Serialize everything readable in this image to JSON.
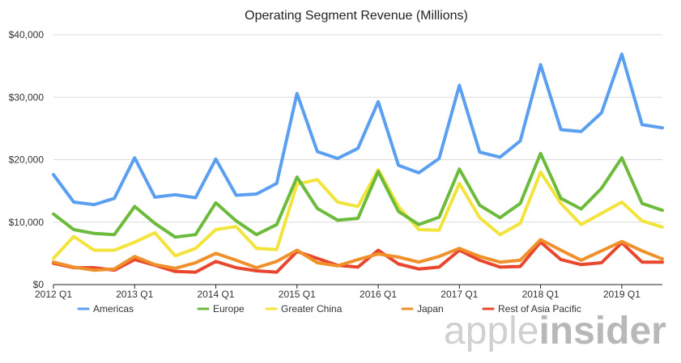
{
  "chart_data": {
    "type": "line",
    "title": "Operating Segment Revenue (Millions)",
    "xlabel": "",
    "ylabel": "",
    "ylim": [
      0,
      40000
    ],
    "yticks": [
      {
        "value": 0,
        "label": "$0"
      },
      {
        "value": 10000,
        "label": "$10,000"
      },
      {
        "value": 20000,
        "label": "$20,000"
      },
      {
        "value": 30000,
        "label": "$30,000"
      },
      {
        "value": 40000,
        "label": "$40,000"
      }
    ],
    "xticks": [
      {
        "index": 0,
        "label": "2012 Q1"
      },
      {
        "index": 4,
        "label": "2013 Q1"
      },
      {
        "index": 8,
        "label": "2014 Q1"
      },
      {
        "index": 12,
        "label": "2015 Q1"
      },
      {
        "index": 16,
        "label": "2016 Q1"
      },
      {
        "index": 20,
        "label": "2017 Q1"
      },
      {
        "index": 24,
        "label": "2018 Q1"
      },
      {
        "index": 28,
        "label": "2019 Q1"
      }
    ],
    "grid": true,
    "legend_position": "bottom",
    "series": [
      {
        "name": "Americas",
        "color": "#5a9ff0",
        "values": [
          17600,
          13200,
          12800,
          13800,
          20300,
          14000,
          14400,
          13900,
          20100,
          14300,
          14500,
          16200,
          30600,
          21300,
          20200,
          21800,
          29300,
          19100,
          17900,
          20200,
          31900,
          21200,
          20400,
          23000,
          35200,
          24800,
          24500,
          27500,
          36900,
          25600,
          25100
        ]
      },
      {
        "name": "Europe",
        "color": "#6cbb3c",
        "values": [
          11300,
          8800,
          8200,
          8000,
          12500,
          9800,
          7600,
          8000,
          13100,
          10200,
          8000,
          9600,
          17200,
          12200,
          10300,
          10600,
          18100,
          11700,
          9600,
          10800,
          18500,
          12700,
          10700,
          13000,
          21000,
          13800,
          12100,
          15400,
          20300,
          13000,
          11900
        ]
      },
      {
        "name": "Greater China",
        "color": "#f3e43c",
        "values": [
          4200,
          7700,
          5500,
          5500,
          6800,
          8300,
          4600,
          5800,
          8800,
          9300,
          5800,
          5600,
          16100,
          16800,
          13200,
          12500,
          18400,
          12500,
          8800,
          8700,
          16200,
          10700,
          8000,
          9800,
          18000,
          13000,
          9600,
          11400,
          13200,
          10200,
          9200
        ]
      },
      {
        "name": "Japan",
        "color": "#f0902a",
        "values": [
          3600,
          2800,
          2300,
          2500,
          4500,
          3200,
          2600,
          3500,
          5000,
          3900,
          2700,
          3700,
          5500,
          3500,
          3000,
          4000,
          4900,
          4400,
          3600,
          4500,
          5800,
          4500,
          3600,
          3900,
          7200,
          5500,
          3900,
          5400,
          6900,
          5400,
          4100
        ]
      },
      {
        "name": "Rest of Asia Pacific",
        "color": "#e8462d",
        "values": [
          3400,
          2700,
          2700,
          2300,
          4000,
          3100,
          2100,
          2000,
          3700,
          2700,
          2200,
          2000,
          5300,
          4200,
          3100,
          2800,
          5500,
          3300,
          2500,
          2800,
          5500,
          3900,
          2800,
          2900,
          6800,
          4000,
          3200,
          3500,
          6700,
          3600,
          3600
        ]
      }
    ]
  },
  "watermark": {
    "brand_light": "apple",
    "brand_bold": "insider"
  }
}
